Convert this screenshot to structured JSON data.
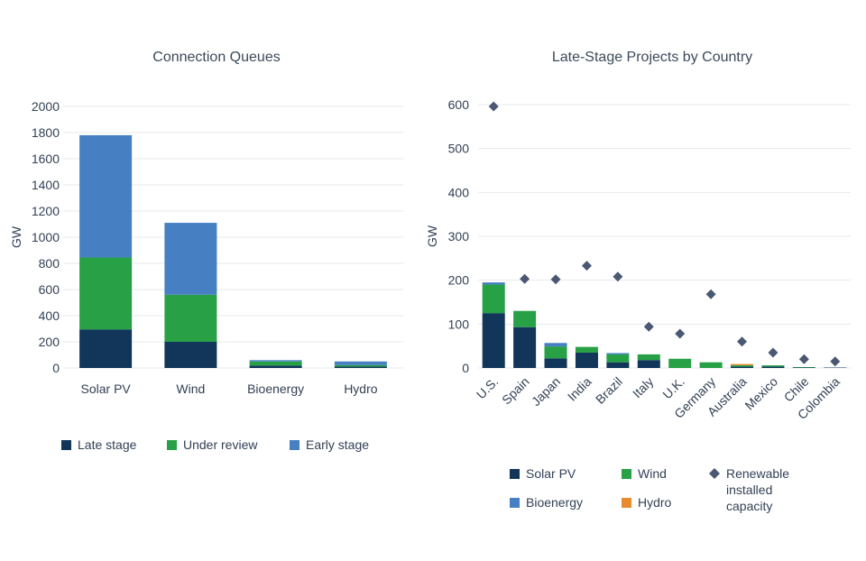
{
  "colors": {
    "late_stage": "#11365a",
    "under_review": "#27a046",
    "early_stage": "#4680c3",
    "solar_pv": "#11365a",
    "wind": "#27a046",
    "bioenergy": "#4680c3",
    "hydro": "#ea8a2e",
    "renewable_capacity": "#4b5873",
    "grid": "#e6e9ee",
    "text": "#334155"
  },
  "chart_data": [
    {
      "type": "bar",
      "stacked": true,
      "title": "Connection Queues",
      "xlabel": "",
      "ylabel": "GW",
      "ylim": [
        0,
        2000
      ],
      "yticks": [
        0,
        200,
        400,
        600,
        800,
        1000,
        1200,
        1400,
        1600,
        1800,
        2000
      ],
      "categories": [
        "Solar PV",
        "Wind",
        "Bioenergy",
        "Hydro"
      ],
      "series": [
        {
          "name": "Late stage",
          "values": [
            295,
            200,
            18,
            10
          ]
        },
        {
          "name": "Under review",
          "values": [
            550,
            360,
            32,
            12
          ]
        },
        {
          "name": "Early stage",
          "values": [
            935,
            550,
            10,
            28
          ]
        }
      ],
      "legend": "bottom",
      "grid": true
    },
    {
      "type": "bar",
      "stacked": true,
      "title": "Late-Stage Projects by Country",
      "xlabel": "",
      "ylabel": "GW",
      "ylim": [
        0,
        600
      ],
      "yticks": [
        0,
        100,
        200,
        300,
        400,
        500,
        600
      ],
      "categories": [
        "U.S.",
        "Spain",
        "Japan",
        "India",
        "Brazil",
        "Italy",
        "U.K.",
        "Germany",
        "Australia",
        "Mexico",
        "Chile",
        "Colombia"
      ],
      "series": [
        {
          "name": "Solar PV",
          "values": [
            125,
            93,
            22,
            35,
            13,
            18,
            0,
            0,
            3,
            3,
            1,
            1
          ]
        },
        {
          "name": "Wind",
          "values": [
            65,
            37,
            27,
            13,
            18,
            13,
            21,
            13,
            3,
            3,
            1,
            0
          ]
        },
        {
          "name": "Bioenergy",
          "values": [
            5,
            0,
            8,
            0,
            3,
            0,
            0,
            0,
            0,
            0,
            0,
            0
          ]
        },
        {
          "name": "Hydro",
          "values": [
            0,
            0,
            0,
            0,
            0,
            0,
            0,
            0,
            3,
            0,
            0,
            0
          ]
        },
        {
          "name": "Renewable installed capacity",
          "type": "scatter",
          "marker": "diamond",
          "values": [
            596,
            203,
            202,
            233,
            208,
            94,
            78,
            168,
            60,
            35,
            20,
            15
          ]
        }
      ],
      "legend": "bottom",
      "grid": true
    }
  ]
}
